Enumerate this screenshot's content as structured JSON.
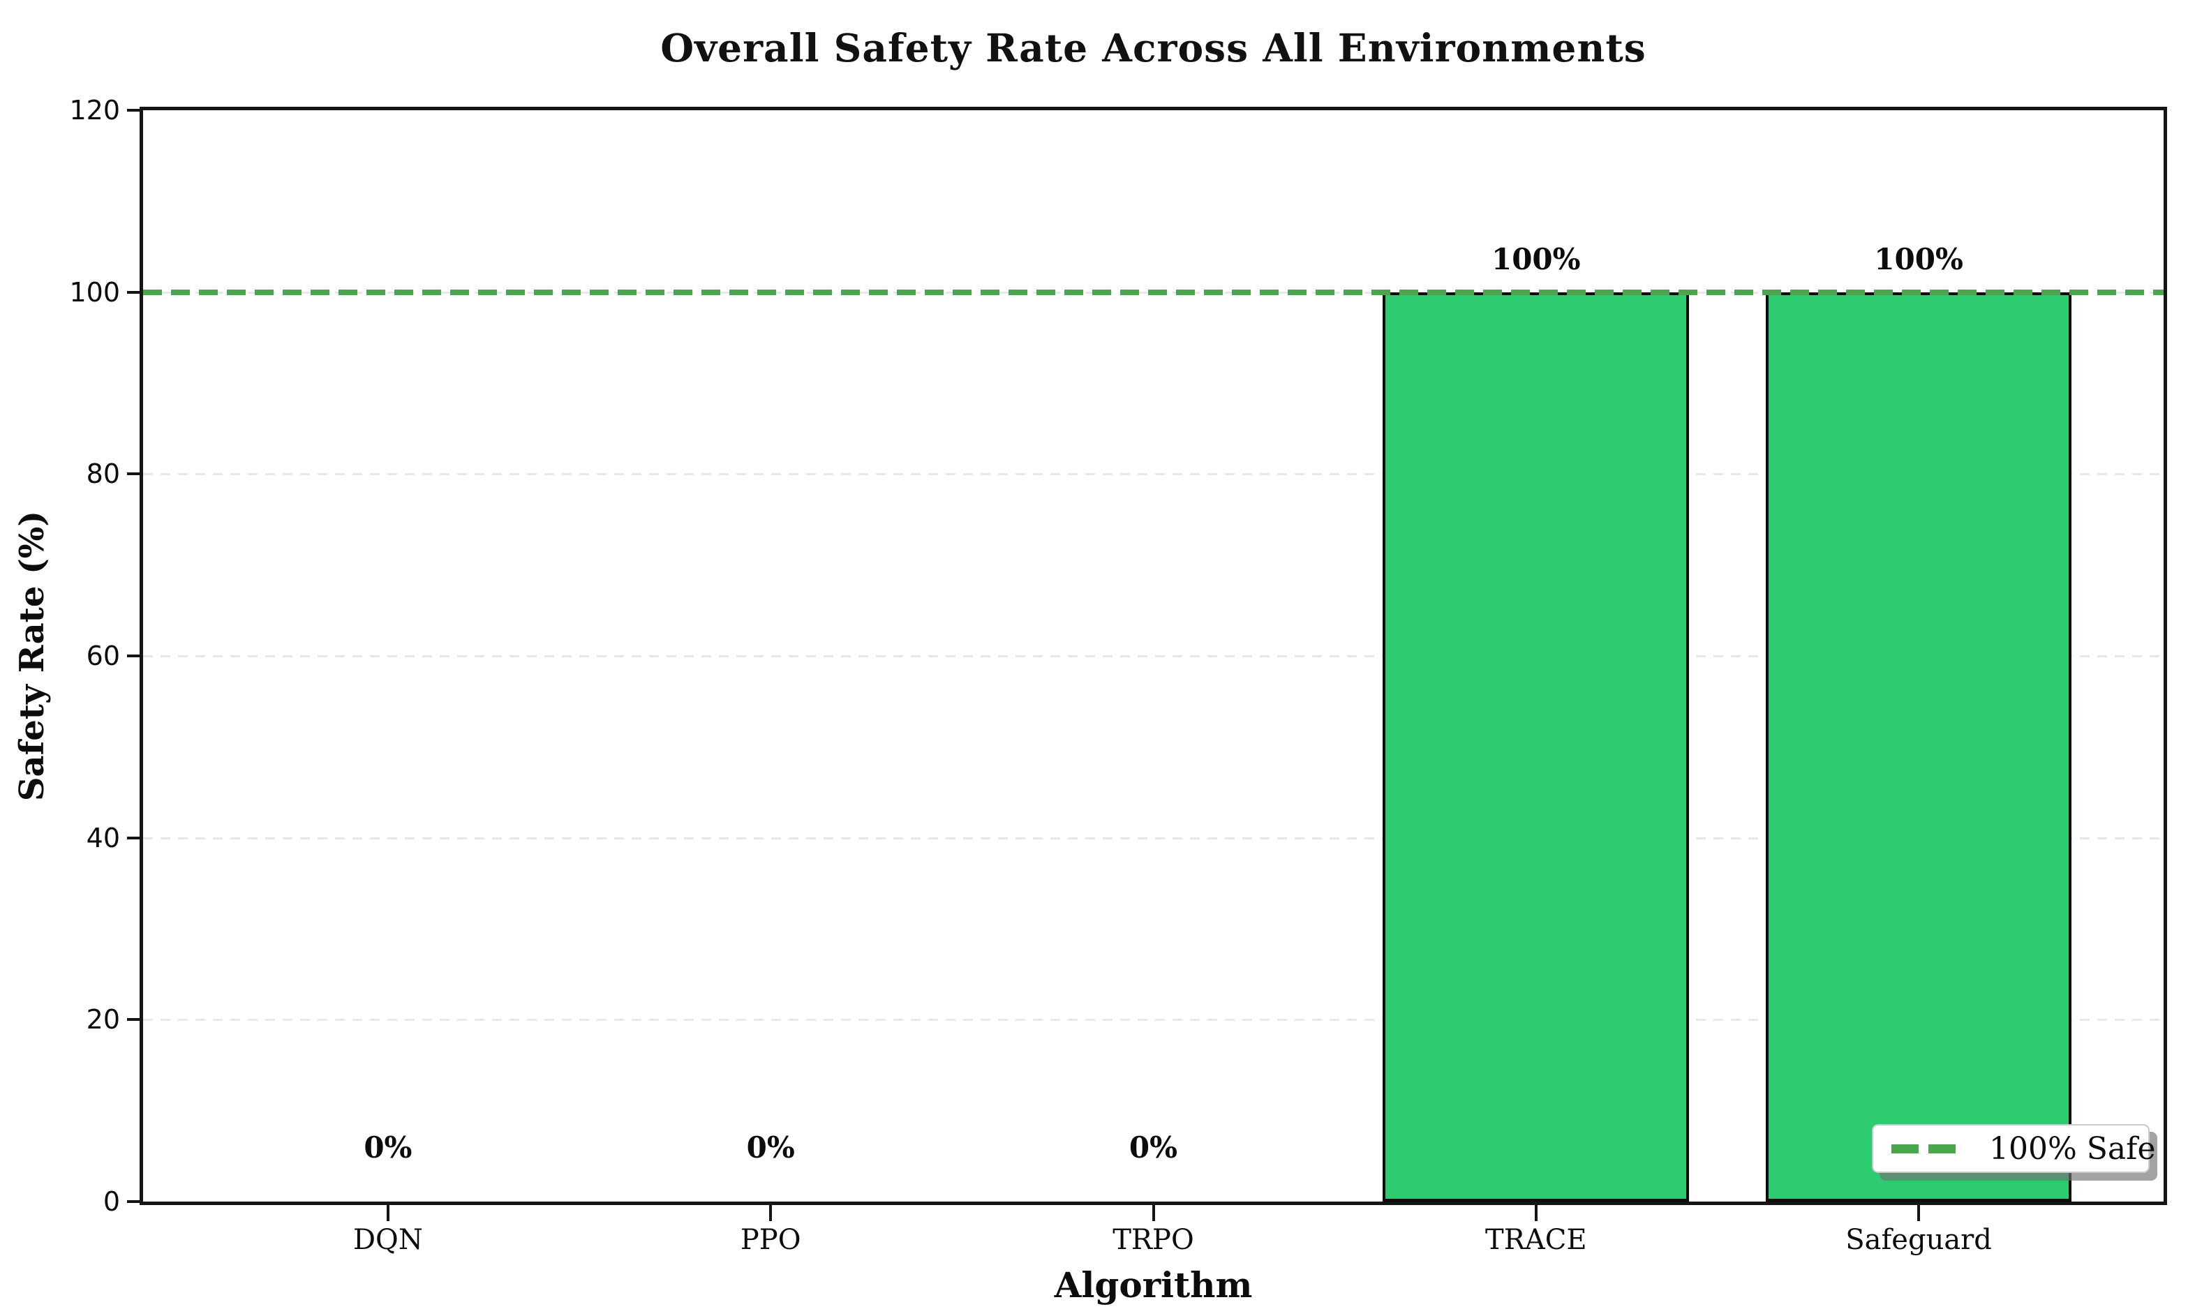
{
  "header": {
    "title": "Overall Safety Rate Across All Environments"
  },
  "legend": {
    "label": "100% Safe"
  },
  "chart_data": {
    "type": "bar",
    "title": "Overall Safety Rate Across All Environments",
    "categories": [
      "DQN",
      "PPO",
      "TRPO",
      "TRACE",
      "Safeguard"
    ],
    "values": [
      0,
      0,
      0,
      100,
      100
    ],
    "value_labels": [
      "0%",
      "0%",
      "0%",
      "100%",
      "100%"
    ],
    "xlabel": "Algorithm",
    "ylabel": "Safety Rate (%)",
    "ylim": [
      0,
      120
    ],
    "yticks": [
      0,
      20,
      40,
      60,
      80,
      100,
      120
    ],
    "grid": "horizontal-dashed",
    "legend_position": "lower-right",
    "reference_line": {
      "y": 100,
      "style": "dashed",
      "label": "100% Safe"
    },
    "colors": {
      "bar_fill": "#2ecc71",
      "bar_edge": "#0d0d0d",
      "reference_line_green": "#4aa54e",
      "grid_gray": "#e7e7e7"
    }
  }
}
